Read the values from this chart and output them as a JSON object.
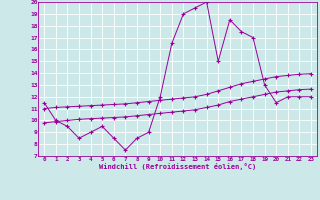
{
  "xlabel": "Windchill (Refroidissement éolien,°C)",
  "bg_color": "#cce8e8",
  "line_color": "#990099",
  "grid_color": "#b8d8d8",
  "xlim": [
    -0.5,
    23.5
  ],
  "ylim": [
    7,
    20
  ],
  "xticks": [
    0,
    1,
    2,
    3,
    4,
    5,
    6,
    7,
    8,
    9,
    10,
    11,
    12,
    13,
    14,
    15,
    16,
    17,
    18,
    19,
    20,
    21,
    22,
    23
  ],
  "yticks": [
    7,
    8,
    9,
    10,
    11,
    12,
    13,
    14,
    15,
    16,
    17,
    18,
    19,
    20
  ],
  "series1_x": [
    0,
    1,
    2,
    3,
    4,
    5,
    6,
    7,
    8,
    9,
    10,
    11,
    12,
    13,
    14,
    15,
    16,
    17,
    18,
    19,
    20,
    21,
    22,
    23
  ],
  "series1_y": [
    11.5,
    10.0,
    9.5,
    8.5,
    9.0,
    9.5,
    8.5,
    7.5,
    8.5,
    9.0,
    12.0,
    16.5,
    19.0,
    19.5,
    20.0,
    15.0,
    18.5,
    17.5,
    17.0,
    13.0,
    11.5,
    12.0,
    12.0,
    12.0
  ],
  "series2_x": [
    0,
    1,
    2,
    3,
    4,
    5,
    6,
    7,
    8,
    9,
    10,
    11,
    12,
    13,
    14,
    15,
    16,
    17,
    18,
    19,
    20,
    21,
    22,
    23
  ],
  "series2_y": [
    9.8,
    9.9,
    10.0,
    10.1,
    10.15,
    10.2,
    10.25,
    10.3,
    10.4,
    10.5,
    10.6,
    10.7,
    10.8,
    10.9,
    11.1,
    11.3,
    11.6,
    11.8,
    12.0,
    12.2,
    12.4,
    12.5,
    12.6,
    12.65
  ],
  "series3_x": [
    0,
    1,
    2,
    3,
    4,
    5,
    6,
    7,
    8,
    9,
    10,
    11,
    12,
    13,
    14,
    15,
    16,
    17,
    18,
    19,
    20,
    21,
    22,
    23
  ],
  "series3_y": [
    11.0,
    11.1,
    11.15,
    11.2,
    11.25,
    11.3,
    11.35,
    11.4,
    11.5,
    11.6,
    11.7,
    11.8,
    11.9,
    12.0,
    12.2,
    12.5,
    12.8,
    13.1,
    13.3,
    13.5,
    13.7,
    13.8,
    13.9,
    13.95
  ]
}
